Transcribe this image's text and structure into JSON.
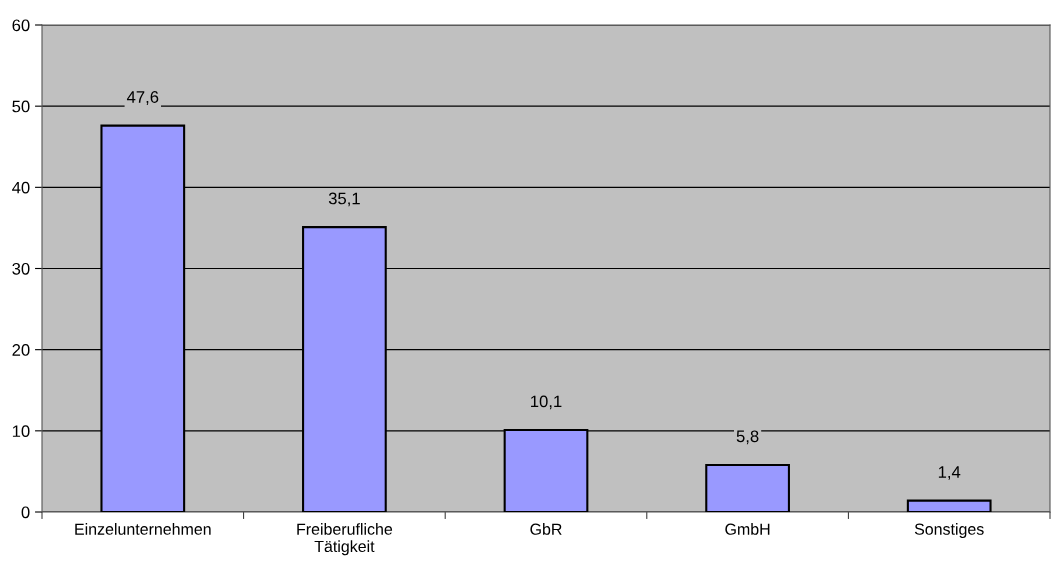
{
  "chart_data": {
    "type": "bar",
    "categories": [
      "Einzelunternehmen",
      "Freiberufliche\nTätigkeit",
      "GbR",
      "GmbH",
      "Sonstiges"
    ],
    "values": [
      47.6,
      35.1,
      10.1,
      5.8,
      1.4
    ],
    "value_labels": [
      "47,6",
      "35,1",
      "10,1",
      "5,8",
      "1,4"
    ],
    "color": "#9999ff",
    "ylim": [
      0,
      60
    ],
    "yticks": [
      0,
      10,
      20,
      30,
      40,
      50,
      60
    ],
    "grid": "y"
  }
}
